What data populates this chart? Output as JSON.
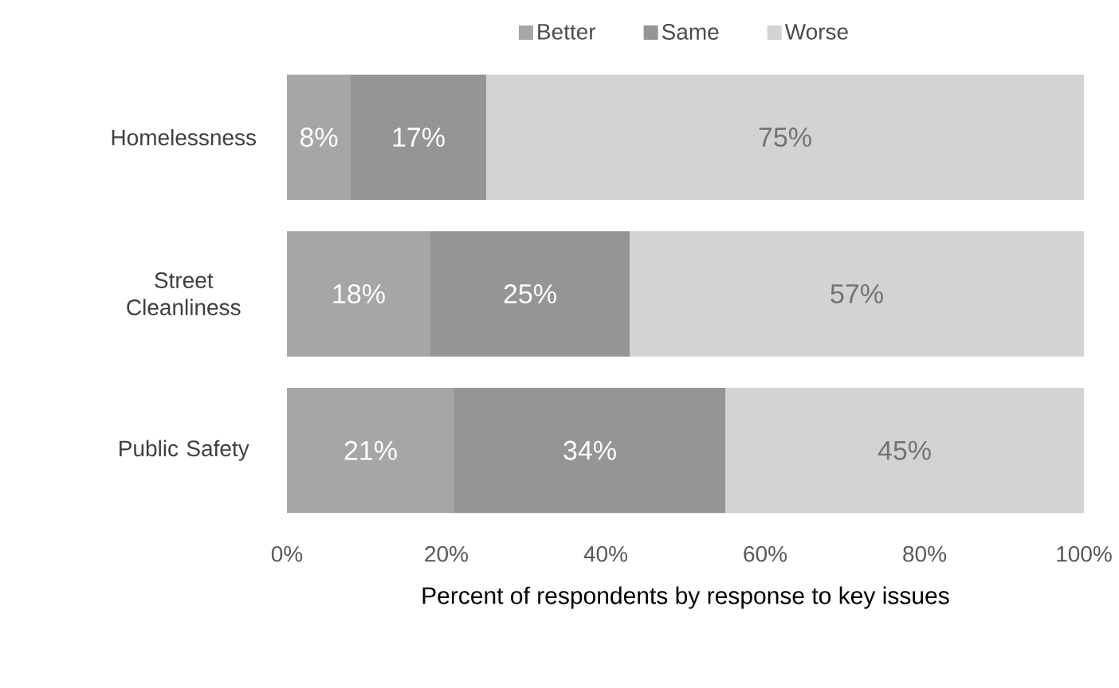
{
  "chart_data": {
    "type": "bar",
    "orientation": "horizontal",
    "stacked": true,
    "xlabel": "Percent of respondents by response to key issues",
    "categories": [
      "Homelessness",
      "Street Cleanliness",
      "Public Safety"
    ],
    "series": [
      {
        "name": "Better",
        "color": "#a6a6a6",
        "values": [
          8,
          18,
          21
        ],
        "value_labels": [
          "8%",
          "18%",
          "21%"
        ]
      },
      {
        "name": "Same",
        "color": "#959595",
        "values": [
          17,
          25,
          34
        ],
        "value_labels": [
          "17%",
          "25%",
          "34%"
        ]
      },
      {
        "name": "Worse",
        "color": "#d3d3d3",
        "values": [
          75,
          57,
          45
        ],
        "value_labels": [
          "75%",
          "57%",
          "45%"
        ]
      }
    ],
    "xlim": [
      0,
      100
    ],
    "xticks": [
      {
        "value": 0,
        "label": "0%"
      },
      {
        "value": 20,
        "label": "20%"
      },
      {
        "value": 40,
        "label": "40%"
      },
      {
        "value": 60,
        "label": "60%"
      },
      {
        "value": 80,
        "label": "80%"
      },
      {
        "value": 100,
        "label": "100%"
      }
    ],
    "legend": "top",
    "grid": false
  }
}
